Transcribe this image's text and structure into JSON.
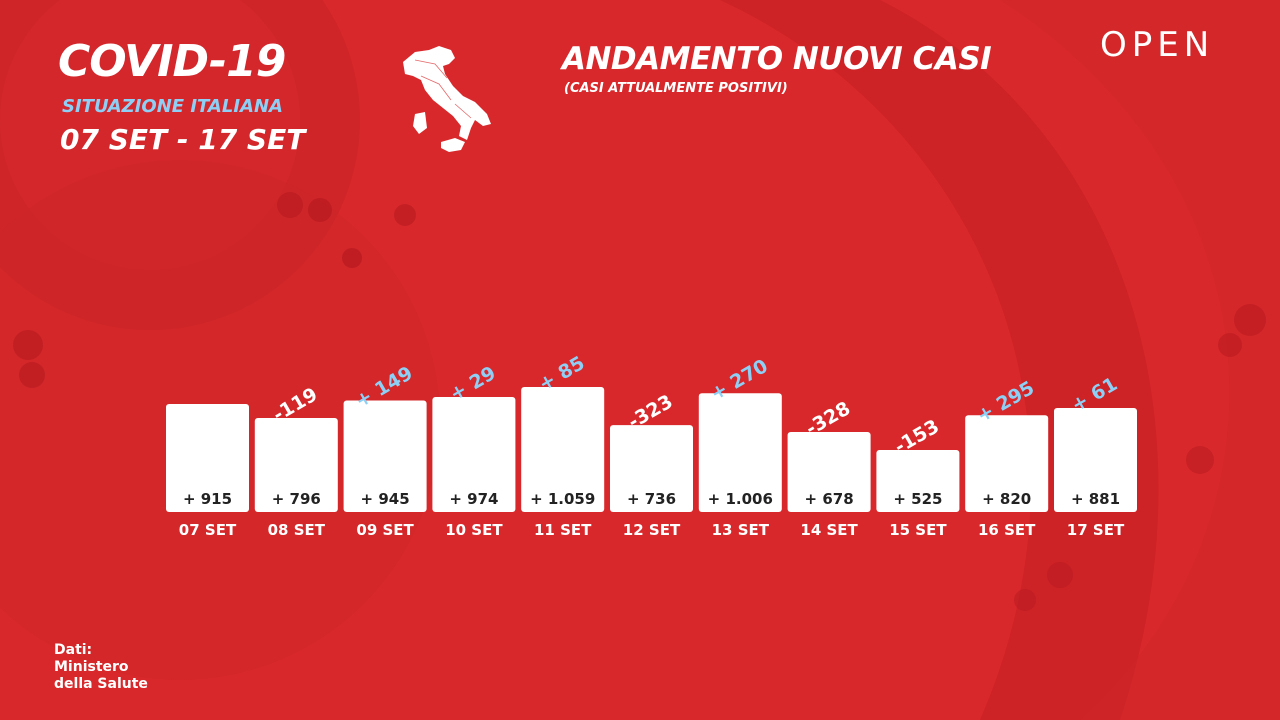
{
  "header": {
    "title": "COVID-19",
    "subtitle": "SITUAZIONE ITALIANA",
    "date_range": "07 SET - 17 SET"
  },
  "brand": {
    "logo": "OPEN"
  },
  "source": {
    "lines": [
      "Dati:",
      "Ministero",
      "della Salute"
    ]
  },
  "icons": {
    "map": "italy-map-icon"
  },
  "colors": {
    "background": "#d8282b",
    "bar": "#ffffff",
    "positive": "#8ed0f5",
    "negative": "#ffffff",
    "value_text": "#222222"
  },
  "chart_data": {
    "type": "bar",
    "title": "ANDAMENTO NUOVI CASI",
    "subtitle": "(CASI ATTUALMENTE POSITIVI)",
    "categories": [
      "07 SET",
      "08 SET",
      "09 SET",
      "10 SET",
      "11 SET",
      "12 SET",
      "13 SET",
      "14 SET",
      "15 SET",
      "16 SET",
      "17 SET"
    ],
    "values": [
      915,
      796,
      945,
      974,
      1059,
      736,
      1006,
      678,
      525,
      820,
      881
    ],
    "value_labels": [
      "+ 915",
      "+ 796",
      "+ 945",
      "+ 974",
      "+ 1.059",
      "+ 736",
      "+ 1.006",
      "+ 678",
      "+ 525",
      "+ 820",
      "+ 881"
    ],
    "deltas": [
      null,
      -119,
      149,
      29,
      85,
      -323,
      270,
      -328,
      -153,
      295,
      61
    ],
    "delta_labels": [
      "",
      "-119",
      "+ 149",
      "+ 29",
      "+ 85",
      "-323",
      "+ 270",
      "-328",
      "-153",
      "+ 295",
      "+ 61"
    ],
    "grid": false,
    "legend": "none"
  }
}
